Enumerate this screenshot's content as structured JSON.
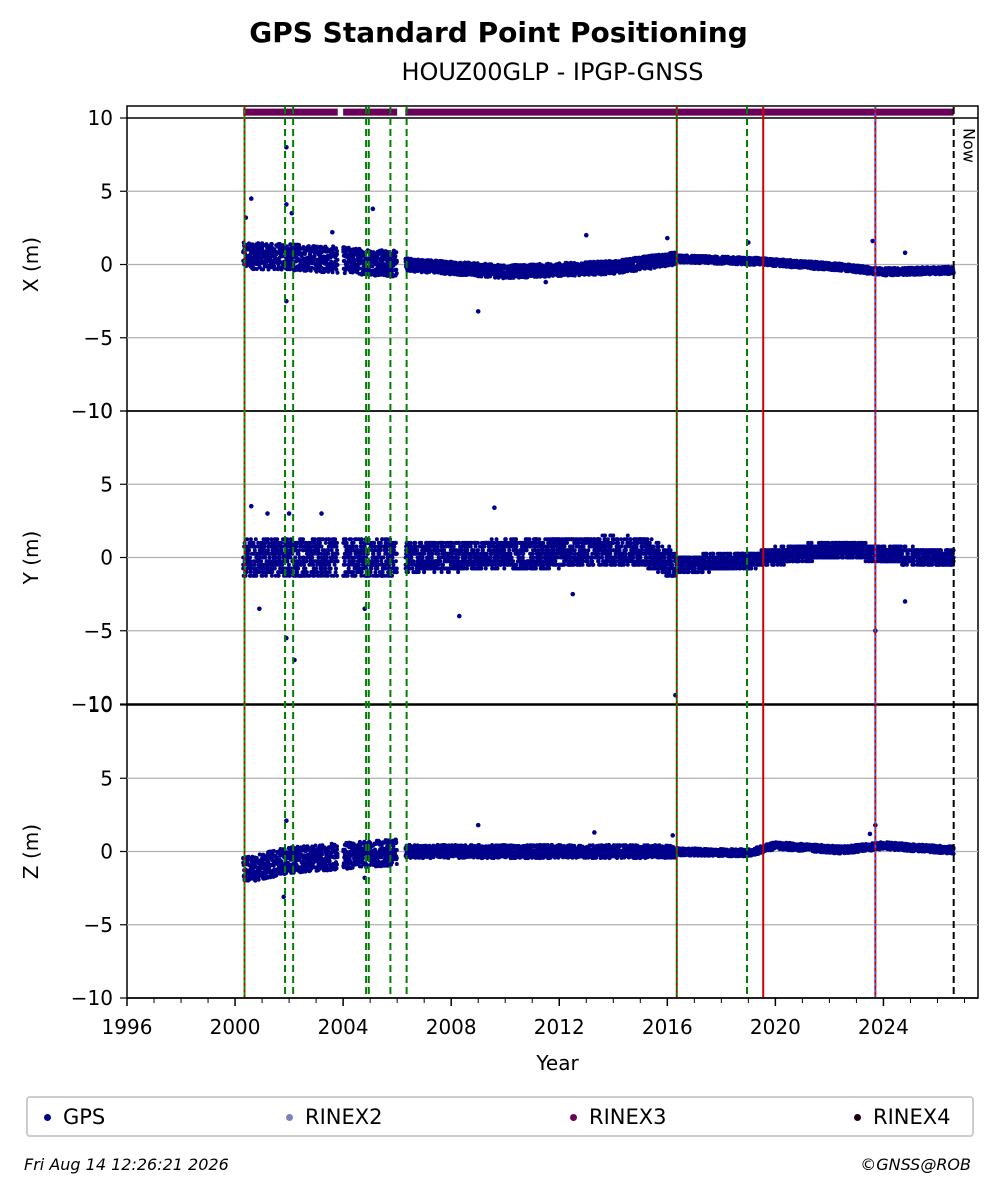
{
  "header": {
    "title": "GPS Standard Point Positioning",
    "subtitle": "HOUZ00GLP - IPGP-GNSS"
  },
  "footer": {
    "timestamp": "Fri Aug 14 12:26:21 2026",
    "copyright": "©GNSS@ROB"
  },
  "legend": [
    {
      "label": "GPS",
      "color": "#00008b"
    },
    {
      "label": "RINEX2",
      "color": "#8080c0"
    },
    {
      "label": "RINEX3",
      "color": "#6a005a"
    },
    {
      "label": "RINEX4",
      "color": "#1a0010"
    }
  ],
  "now_label": "Now",
  "chart_data": {
    "type": "scatter",
    "xlabel": "Year",
    "xlim": [
      1996,
      2027.5
    ],
    "xticks": [
      1996,
      2000,
      2004,
      2008,
      2012,
      2016,
      2020,
      2024
    ],
    "grid": "y",
    "panels": [
      {
        "name": "X",
        "ylabel": "X (m)",
        "ylim": [
          -10,
          10
        ],
        "yticks": [
          10,
          5,
          0,
          -5,
          -10
        ],
        "trend": [
          [
            2000.3,
            0.6
          ],
          [
            2002.0,
            0.5
          ],
          [
            2004.0,
            0.3
          ],
          [
            2006.3,
            0.0
          ],
          [
            2010.0,
            -0.5
          ],
          [
            2014.0,
            -0.2
          ],
          [
            2016.3,
            0.4
          ],
          [
            2019.5,
            0.2
          ],
          [
            2022.5,
            -0.2
          ],
          [
            2024.0,
            -0.5
          ],
          [
            2026.5,
            -0.4
          ]
        ],
        "outliers": [
          [
            2000.6,
            4.5
          ],
          [
            2000.4,
            3.2
          ],
          [
            2001.9,
            8.0
          ],
          [
            2001.9,
            4.1
          ],
          [
            2002.1,
            3.5
          ],
          [
            2005.1,
            3.8
          ],
          [
            2001.9,
            -2.5
          ],
          [
            2009.0,
            -3.2
          ],
          [
            2003.6,
            2.2
          ],
          [
            2011.5,
            -1.2
          ],
          [
            2013.0,
            2.0
          ],
          [
            2016.0,
            1.8
          ],
          [
            2019.0,
            1.5
          ],
          [
            2023.6,
            1.6
          ],
          [
            2024.8,
            0.8
          ]
        ]
      },
      {
        "name": "Y",
        "ylabel": "Y (m)",
        "ylim": [
          -10,
          10
        ],
        "yticks": [
          10,
          5,
          0,
          -5,
          -10
        ],
        "trend": [
          [
            2000.3,
            0.0
          ],
          [
            2006.3,
            0.0
          ],
          [
            2010.0,
            0.2
          ],
          [
            2015.0,
            0.5
          ],
          [
            2016.3,
            -0.5
          ],
          [
            2019.0,
            -0.2
          ],
          [
            2020.0,
            0.1
          ],
          [
            2022.5,
            0.6
          ],
          [
            2024.0,
            0.2
          ],
          [
            2026.5,
            0.0
          ]
        ],
        "outliers": [
          [
            2000.6,
            3.5
          ],
          [
            2001.2,
            3.0
          ],
          [
            2003.2,
            3.0
          ],
          [
            2002.0,
            3.0
          ],
          [
            2001.9,
            -5.5
          ],
          [
            2002.2,
            -7.0
          ],
          [
            2004.8,
            -3.5
          ],
          [
            2008.3,
            -4.0
          ],
          [
            2016.3,
            -9.4
          ],
          [
            2023.7,
            -5.0
          ],
          [
            2024.8,
            -3.0
          ],
          [
            2009.6,
            3.4
          ],
          [
            2000.9,
            -3.5
          ],
          [
            2012.5,
            -2.5
          ]
        ]
      },
      {
        "name": "Z",
        "ylabel": "Z (m)",
        "ylim": [
          -10,
          10
        ],
        "yticks": [
          10,
          5,
          0,
          -5,
          -10
        ],
        "trend": [
          [
            2000.3,
            -1.3
          ],
          [
            2002.0,
            -0.6
          ],
          [
            2004.0,
            -0.3
          ],
          [
            2006.3,
            0.0
          ],
          [
            2010.0,
            0.0
          ],
          [
            2016.0,
            0.0
          ],
          [
            2019.0,
            -0.1
          ],
          [
            2020.0,
            0.4
          ],
          [
            2022.5,
            0.1
          ],
          [
            2024.0,
            0.4
          ],
          [
            2026.5,
            0.1
          ]
        ],
        "outliers": [
          [
            2001.9,
            2.1
          ],
          [
            2001.8,
            -3.1
          ],
          [
            2004.8,
            -1.8
          ],
          [
            2009.0,
            1.8
          ],
          [
            2013.3,
            1.3
          ],
          [
            2016.2,
            1.1
          ],
          [
            2023.7,
            1.8
          ],
          [
            2023.5,
            1.2
          ]
        ]
      }
    ],
    "data_gaps": [
      [
        2003.8,
        2004.0
      ],
      [
        2006.0,
        2006.3
      ]
    ],
    "rinex_bar": {
      "y": 10.4,
      "start": 2000.3,
      "end": 2026.6,
      "gaps": [
        [
          2003.8,
          2004.0
        ],
        [
          2006.0,
          2006.3
        ]
      ]
    },
    "vlines": [
      {
        "year": 2000.35,
        "color": "#00a000",
        "style": "solid",
        "overlay": "#cc0000"
      },
      {
        "year": 2001.85,
        "color": "#008000",
        "style": "dashed"
      },
      {
        "year": 2002.15,
        "color": "#008000",
        "style": "dashed"
      },
      {
        "year": 2004.85,
        "color": "#008000",
        "style": "dashed"
      },
      {
        "year": 2004.95,
        "color": "#008000",
        "style": "dashed"
      },
      {
        "year": 2005.75,
        "color": "#008000",
        "style": "dashed"
      },
      {
        "year": 2006.35,
        "color": "#008000",
        "style": "dashed"
      },
      {
        "year": 2016.35,
        "color": "#008000",
        "style": "solid",
        "overlay": "#cc0000"
      },
      {
        "year": 2018.95,
        "color": "#008000",
        "style": "dashed"
      },
      {
        "year": 2019.55,
        "color": "#cc0000",
        "style": "solid"
      },
      {
        "year": 2023.7,
        "color": "#cc0000",
        "style": "solid",
        "overlay": "#3060ff"
      },
      {
        "year": 2026.6,
        "color": "#000000",
        "style": "dashed",
        "now": true
      }
    ]
  }
}
